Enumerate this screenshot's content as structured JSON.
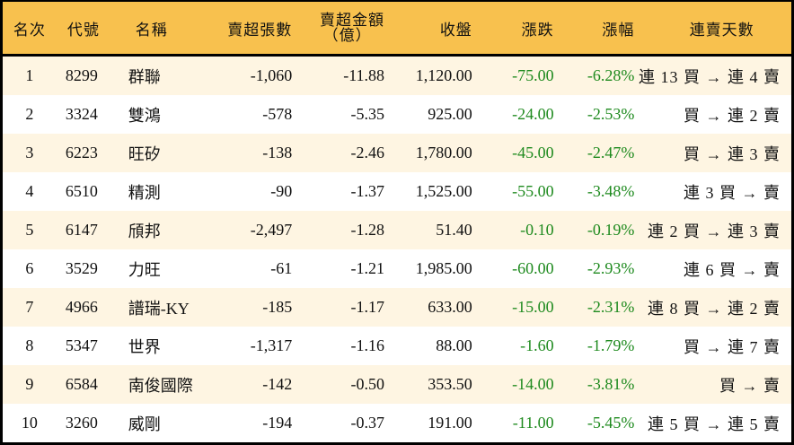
{
  "table": {
    "headers": {
      "rank": "名次",
      "code": "代號",
      "name": "名稱",
      "shares": "賣超張數",
      "amount_line1": "賣超金額",
      "amount_line2": "（億）",
      "close": "收盤",
      "change": "漲跌",
      "pct": "漲幅",
      "streak": "連賣天數"
    },
    "colors": {
      "header_bg": "#F8C14E",
      "odd_row_bg": "#FEF5E2",
      "even_row_bg": "#FFFFFF",
      "negative_text": "#1E8A1E",
      "border": "#000000"
    },
    "rows": [
      {
        "rank": "1",
        "code": "8299",
        "name": "群聯",
        "shares": "-1,060",
        "amount": "-11.88",
        "close": "1,120.00",
        "change": "-75.00",
        "pct": "-6.28%",
        "streak": "連 13 買 → 連 4 賣"
      },
      {
        "rank": "2",
        "code": "3324",
        "name": "雙鴻",
        "shares": "-578",
        "amount": "-5.35",
        "close": "925.00",
        "change": "-24.00",
        "pct": "-2.53%",
        "streak": "買 → 連 2 賣"
      },
      {
        "rank": "3",
        "code": "6223",
        "name": "旺矽",
        "shares": "-138",
        "amount": "-2.46",
        "close": "1,780.00",
        "change": "-45.00",
        "pct": "-2.47%",
        "streak": "買 → 連 3 賣"
      },
      {
        "rank": "4",
        "code": "6510",
        "name": "精測",
        "shares": "-90",
        "amount": "-1.37",
        "close": "1,525.00",
        "change": "-55.00",
        "pct": "-3.48%",
        "streak": "連 3 買 → 賣"
      },
      {
        "rank": "5",
        "code": "6147",
        "name": "頎邦",
        "shares": "-2,497",
        "amount": "-1.28",
        "close": "51.40",
        "change": "-0.10",
        "pct": "-0.19%",
        "streak": "連 2 買 → 連 3 賣"
      },
      {
        "rank": "6",
        "code": "3529",
        "name": "力旺",
        "shares": "-61",
        "amount": "-1.21",
        "close": "1,985.00",
        "change": "-60.00",
        "pct": "-2.93%",
        "streak": "連 6 買 → 賣"
      },
      {
        "rank": "7",
        "code": "4966",
        "name": "譜瑞-KY",
        "shares": "-185",
        "amount": "-1.17",
        "close": "633.00",
        "change": "-15.00",
        "pct": "-2.31%",
        "streak": "連 8 買 → 連 2 賣"
      },
      {
        "rank": "8",
        "code": "5347",
        "name": "世界",
        "shares": "-1,317",
        "amount": "-1.16",
        "close": "88.00",
        "change": "-1.60",
        "pct": "-1.79%",
        "streak": "買 → 連 7 賣"
      },
      {
        "rank": "9",
        "code": "6584",
        "name": "南俊國際",
        "shares": "-142",
        "amount": "-0.50",
        "close": "353.50",
        "change": "-14.00",
        "pct": "-3.81%",
        "streak": "買 → 賣"
      },
      {
        "rank": "10",
        "code": "3260",
        "name": "威剛",
        "shares": "-194",
        "amount": "-0.37",
        "close": "191.00",
        "change": "-11.00",
        "pct": "-5.45%",
        "streak": "連 5 買 → 連 5 賣"
      }
    ]
  }
}
